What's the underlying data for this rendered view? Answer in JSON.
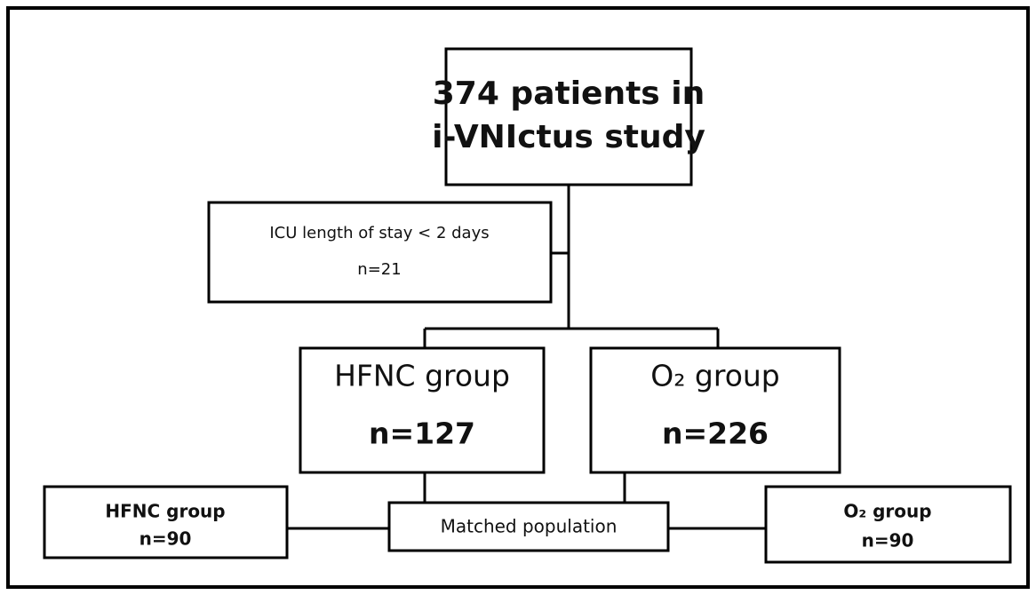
{
  "nodes": [
    {
      "lines": [
        "374 patients in",
        "i-VNIctus study"
      ]
    },
    {
      "lines": [
        "ICU length of stay < 2 days",
        "n=21"
      ]
    },
    {
      "lines": [
        "HFNC group",
        "n=127"
      ]
    },
    {
      "lines": [
        "O₂ group",
        "n=226"
      ]
    },
    {
      "lines": [
        "Matched population"
      ]
    },
    {
      "lines": [
        "HFNC group",
        "n=90"
      ]
    },
    {
      "lines": [
        "O₂ group",
        "n=90"
      ]
    }
  ]
}
